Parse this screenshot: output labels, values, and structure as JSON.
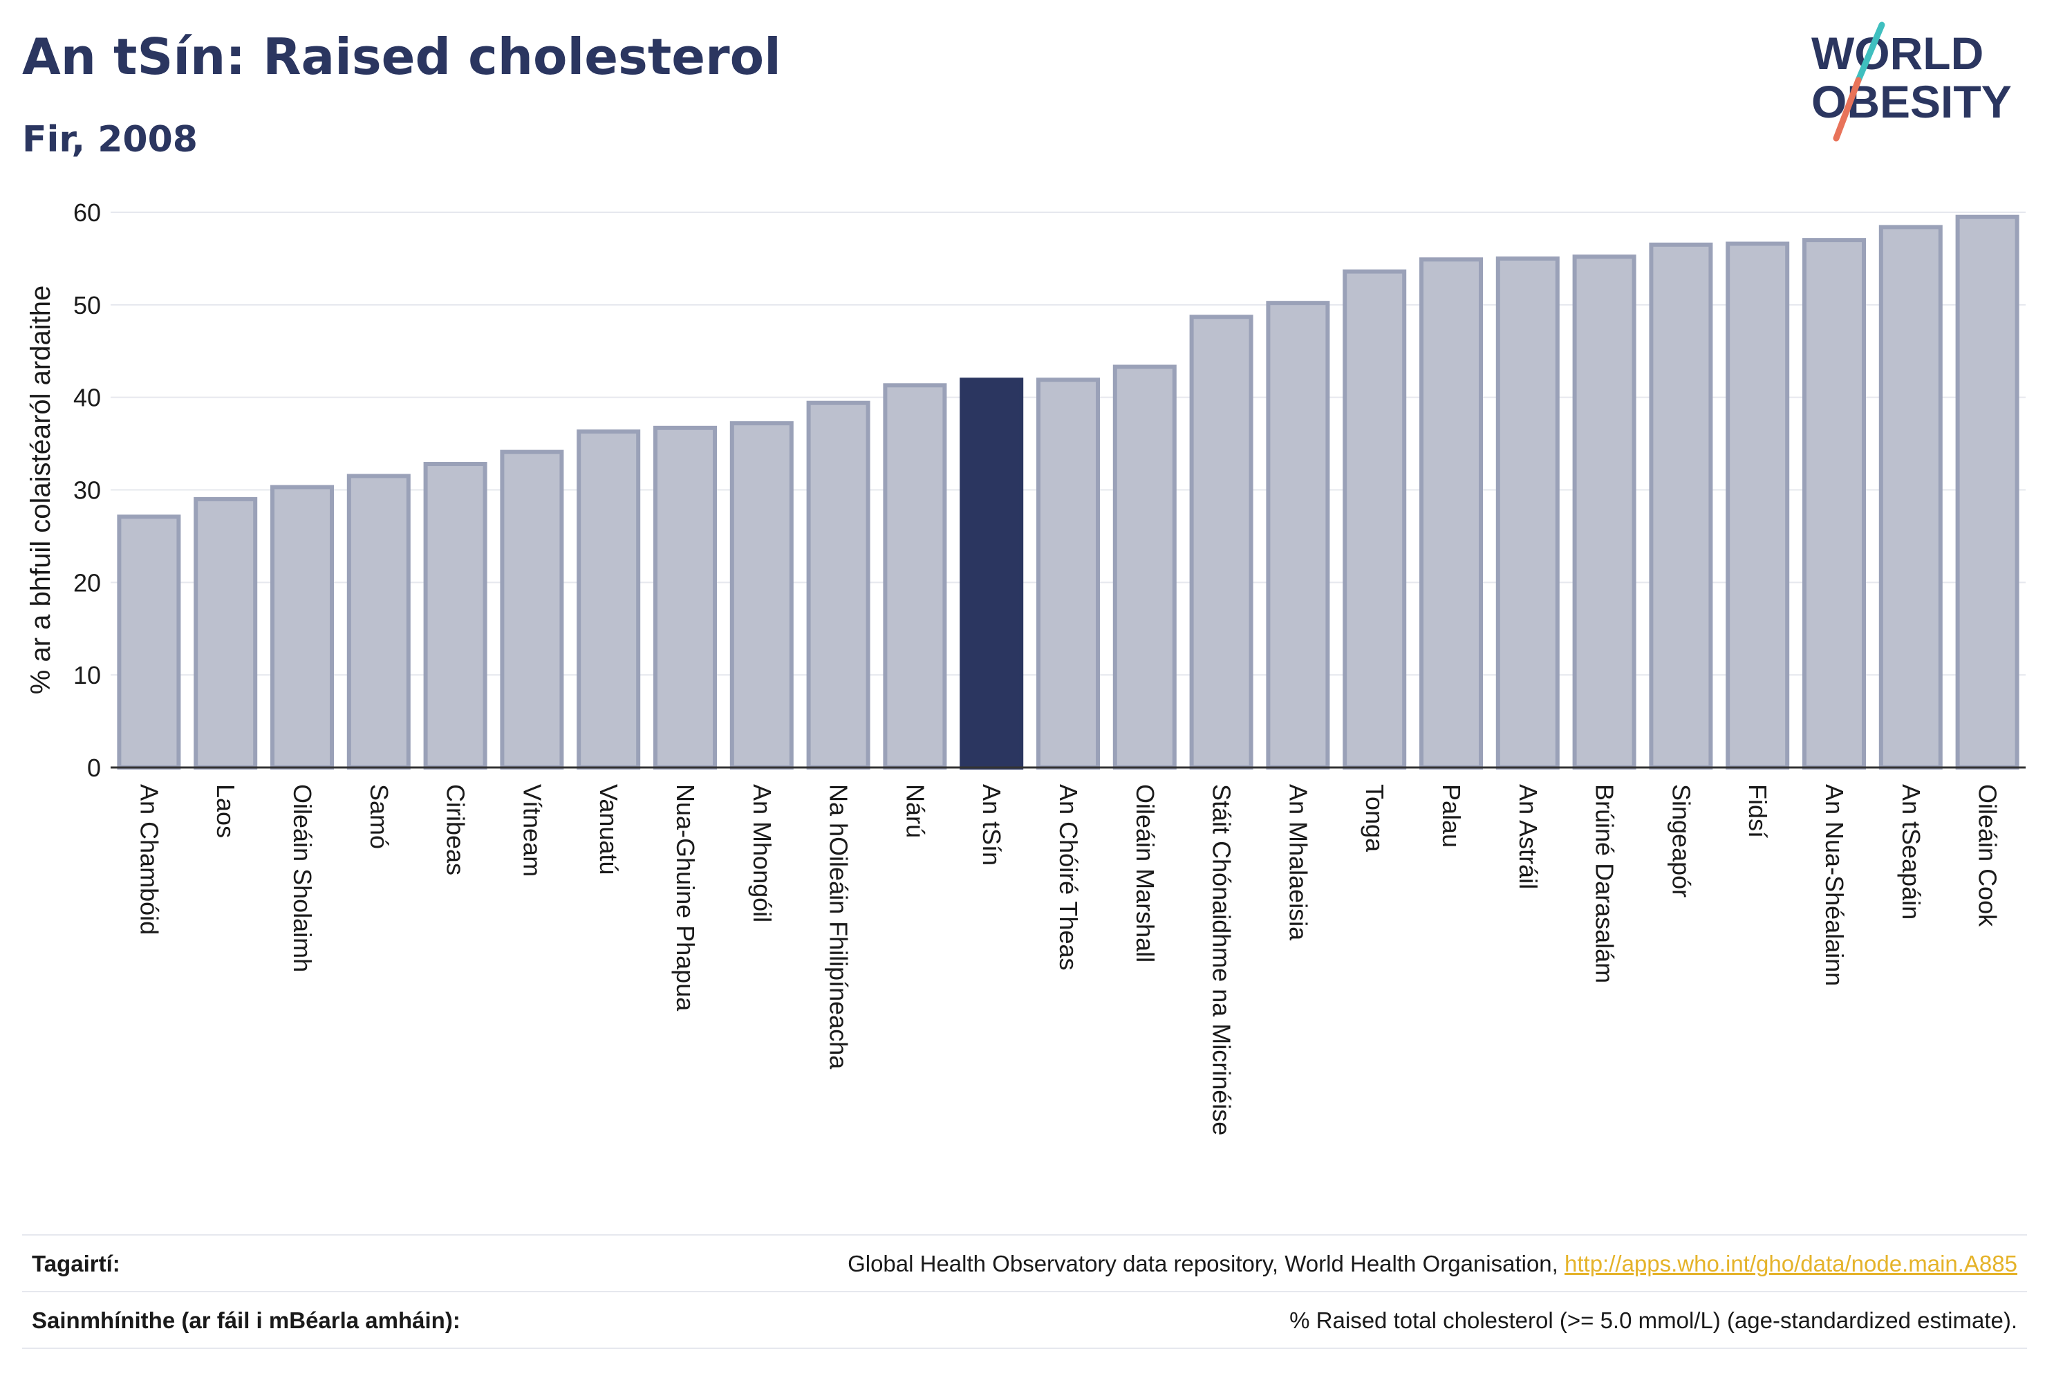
{
  "header": {
    "title": "An tSín: Raised cholesterol",
    "subtitle": "Fir, 2008"
  },
  "logo": {
    "line1": "WORLD",
    "line2": "OBESITY",
    "text_color": "#2b3660",
    "accent_teal": "#3fbfbf",
    "accent_coral": "#e8735a"
  },
  "colors": {
    "bar_default": "#bcc0ce",
    "bar_border": "#9aa1b8",
    "bar_highlight": "#2b3660",
    "grid": "#e6e8ee",
    "axis_text": "#1a1a1a"
  },
  "chart_data": {
    "type": "bar",
    "title": "",
    "xlabel": "",
    "ylabel": "% ar a bhfuil colaistéaról ardaithe",
    "ylim": [
      0,
      60
    ],
    "yticks": [
      0,
      10,
      20,
      30,
      40,
      50,
      60
    ],
    "grid": true,
    "highlight": "An tSín",
    "categories": [
      "An Chambóid",
      "Laos",
      "Oileáin Sholaimh",
      "Samó",
      "Ciribeas",
      "Vítneam",
      "Vanuatú",
      "Nua-Ghuine Phapua",
      "An Mhongóil",
      "Na hOileáin Fhilipíneacha",
      "Nárú",
      "An tSín",
      "An Chóiré Theas",
      "Oileáin Marshall",
      "Stáit Chónaidhme na Micrinéise",
      "An Mhalaeisia",
      "Tonga",
      "Palau",
      "An Astráil",
      "Brúiné Darasalám",
      "Singeapór",
      "Fidsí",
      "An Nua-Shéalainn",
      "An tSeapáin",
      "Oileáin Cook"
    ],
    "values": [
      27.1,
      29.0,
      30.3,
      31.5,
      32.8,
      34.1,
      36.3,
      36.7,
      37.2,
      39.4,
      41.3,
      41.9,
      41.9,
      43.3,
      48.7,
      50.2,
      53.6,
      54.9,
      55.0,
      55.2,
      56.5,
      56.6,
      57.0,
      58.4,
      59.5
    ]
  },
  "references": {
    "row1_label": "Tagairtí:",
    "row1_text": "Global Health Observatory data repository, World Health Organisation, ",
    "row1_link": "http://apps.who.int/gho/data/node.main.A885",
    "row2_label": "Sainmhínithe (ar fáil i mBéarla amháin):",
    "row2_text": "% Raised total cholesterol (>= 5.0 mmol/L) (age-standardized estimate)."
  }
}
